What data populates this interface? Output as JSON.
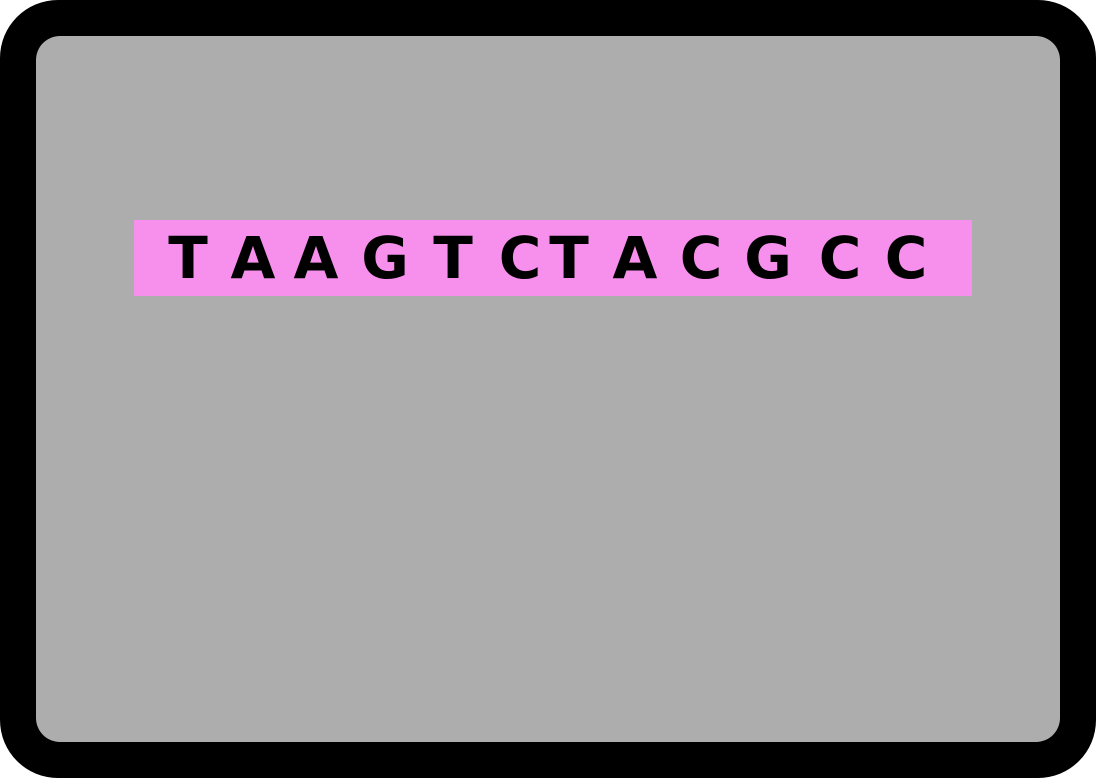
{
  "colors": {
    "frame": "#000000",
    "screen_background": "#adadad",
    "highlight": "#f78fec",
    "text": "#000000"
  },
  "sequence": {
    "bases": [
      "T",
      "A",
      "A",
      "G",
      "T",
      "C",
      "T",
      "A",
      "C",
      "G",
      "C",
      "C"
    ]
  }
}
